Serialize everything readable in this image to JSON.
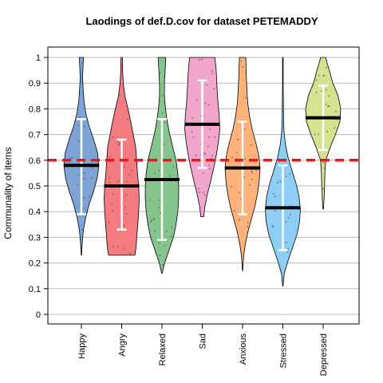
{
  "chart_data": {
    "type": "violin",
    "title": "Laodings of def.D.cov for dataset PETEMADDY",
    "xlabel": "",
    "ylabel": "Communality of items",
    "ylim": [
      0,
      1
    ],
    "yticks": [
      "0",
      "0.1",
      "0.2",
      "0.3",
      "0.4",
      "0.5",
      "0.6",
      "0.7",
      "0.8",
      "0.9",
      "1"
    ],
    "grid": true,
    "reference_line": {
      "y": 0.6,
      "color": "#e41a1c",
      "style": "dashed"
    },
    "groups": [
      {
        "name": "Happy",
        "color": "#7ea4d6",
        "min": 0.23,
        "max": 1.0,
        "median": 0.58,
        "lower": 0.39,
        "upper": 0.76,
        "density": [
          [
            0.23,
            0.01
          ],
          [
            0.28,
            0.05
          ],
          [
            0.33,
            0.12
          ],
          [
            0.38,
            0.26
          ],
          [
            0.43,
            0.45
          ],
          [
            0.48,
            0.7
          ],
          [
            0.53,
            0.9
          ],
          [
            0.58,
            1.0
          ],
          [
            0.63,
            0.92
          ],
          [
            0.68,
            0.7
          ],
          [
            0.73,
            0.45
          ],
          [
            0.78,
            0.26
          ],
          [
            0.83,
            0.15
          ],
          [
            0.88,
            0.1
          ],
          [
            0.92,
            0.07
          ],
          [
            0.96,
            0.09
          ],
          [
            1.0,
            0.12
          ]
        ]
      },
      {
        "name": "Angry",
        "color": "#f47c80",
        "min": 0.23,
        "max": 1.0,
        "median": 0.5,
        "lower": 0.33,
        "upper": 0.68,
        "density": [
          [
            0.23,
            0.75
          ],
          [
            0.26,
            0.82
          ],
          [
            0.3,
            0.86
          ],
          [
            0.35,
            0.92
          ],
          [
            0.4,
            0.97
          ],
          [
            0.45,
            1.0
          ],
          [
            0.5,
            0.97
          ],
          [
            0.55,
            0.9
          ],
          [
            0.6,
            0.85
          ],
          [
            0.65,
            0.8
          ],
          [
            0.7,
            0.66
          ],
          [
            0.75,
            0.52
          ],
          [
            0.8,
            0.36
          ],
          [
            0.85,
            0.18
          ],
          [
            0.9,
            0.09
          ],
          [
            0.95,
            0.05
          ],
          [
            1.0,
            0.04
          ]
        ]
      },
      {
        "name": "Relaxed",
        "color": "#86c48e",
        "min": 0.16,
        "max": 1.0,
        "median": 0.525,
        "lower": 0.29,
        "upper": 0.76,
        "density": [
          [
            0.16,
            0.02
          ],
          [
            0.2,
            0.15
          ],
          [
            0.25,
            0.4
          ],
          [
            0.3,
            0.65
          ],
          [
            0.35,
            0.8
          ],
          [
            0.4,
            0.9
          ],
          [
            0.45,
            0.95
          ],
          [
            0.5,
            0.95
          ],
          [
            0.55,
            0.9
          ],
          [
            0.6,
            0.8
          ],
          [
            0.65,
            0.62
          ],
          [
            0.7,
            0.44
          ],
          [
            0.75,
            0.3
          ],
          [
            0.8,
            0.2
          ],
          [
            0.85,
            0.14
          ],
          [
            0.9,
            0.14
          ],
          [
            0.95,
            0.18
          ],
          [
            1.0,
            0.22
          ]
        ]
      },
      {
        "name": "Sad",
        "color": "#f2a6cc",
        "min": 0.38,
        "max": 1.0,
        "median": 0.74,
        "lower": 0.57,
        "upper": 0.91,
        "density": [
          [
            0.38,
            0.08
          ],
          [
            0.42,
            0.15
          ],
          [
            0.47,
            0.3
          ],
          [
            0.52,
            0.48
          ],
          [
            0.57,
            0.65
          ],
          [
            0.62,
            0.8
          ],
          [
            0.67,
            0.92
          ],
          [
            0.72,
            1.0
          ],
          [
            0.77,
            0.97
          ],
          [
            0.82,
            0.9
          ],
          [
            0.87,
            0.85
          ],
          [
            0.92,
            0.82
          ],
          [
            0.96,
            0.78
          ],
          [
            1.0,
            0.72
          ]
        ]
      },
      {
        "name": "Anxious",
        "color": "#fdb27c",
        "min": 0.17,
        "max": 1.0,
        "median": 0.57,
        "lower": 0.39,
        "upper": 0.75,
        "density": [
          [
            0.17,
            0.01
          ],
          [
            0.22,
            0.05
          ],
          [
            0.27,
            0.15
          ],
          [
            0.32,
            0.3
          ],
          [
            0.37,
            0.5
          ],
          [
            0.42,
            0.7
          ],
          [
            0.47,
            0.85
          ],
          [
            0.52,
            0.95
          ],
          [
            0.57,
            1.0
          ],
          [
            0.62,
            0.92
          ],
          [
            0.67,
            0.75
          ],
          [
            0.72,
            0.55
          ],
          [
            0.77,
            0.4
          ],
          [
            0.82,
            0.3
          ],
          [
            0.87,
            0.25
          ],
          [
            0.92,
            0.22
          ],
          [
            0.96,
            0.2
          ],
          [
            1.0,
            0.18
          ]
        ]
      },
      {
        "name": "Stressed",
        "color": "#8ecef4",
        "min": 0.11,
        "max": 1.0,
        "median": 0.415,
        "lower": 0.25,
        "upper": 0.58,
        "density": [
          [
            0.11,
            0.01
          ],
          [
            0.16,
            0.08
          ],
          [
            0.21,
            0.3
          ],
          [
            0.26,
            0.55
          ],
          [
            0.31,
            0.8
          ],
          [
            0.36,
            0.95
          ],
          [
            0.41,
            1.0
          ],
          [
            0.46,
            0.92
          ],
          [
            0.51,
            0.75
          ],
          [
            0.56,
            0.52
          ],
          [
            0.61,
            0.3
          ],
          [
            0.66,
            0.15
          ],
          [
            0.71,
            0.07
          ],
          [
            0.76,
            0.04
          ],
          [
            0.82,
            0.03
          ],
          [
            0.88,
            0.02
          ],
          [
            0.94,
            0.02
          ],
          [
            1.0,
            0.02
          ]
        ]
      },
      {
        "name": "Depressed",
        "color": "#d4e38f",
        "min": 0.41,
        "max": 1.0,
        "median": 0.765,
        "lower": 0.64,
        "upper": 0.89,
        "density": [
          [
            0.41,
            0.02
          ],
          [
            0.45,
            0.05
          ],
          [
            0.5,
            0.08
          ],
          [
            0.55,
            0.1
          ],
          [
            0.6,
            0.15
          ],
          [
            0.65,
            0.4
          ],
          [
            0.7,
            0.7
          ],
          [
            0.75,
            0.95
          ],
          [
            0.8,
            1.0
          ],
          [
            0.85,
            0.85
          ],
          [
            0.9,
            0.55
          ],
          [
            0.95,
            0.35
          ],
          [
            0.98,
            0.22
          ],
          [
            1.0,
            0.15
          ]
        ]
      }
    ]
  }
}
